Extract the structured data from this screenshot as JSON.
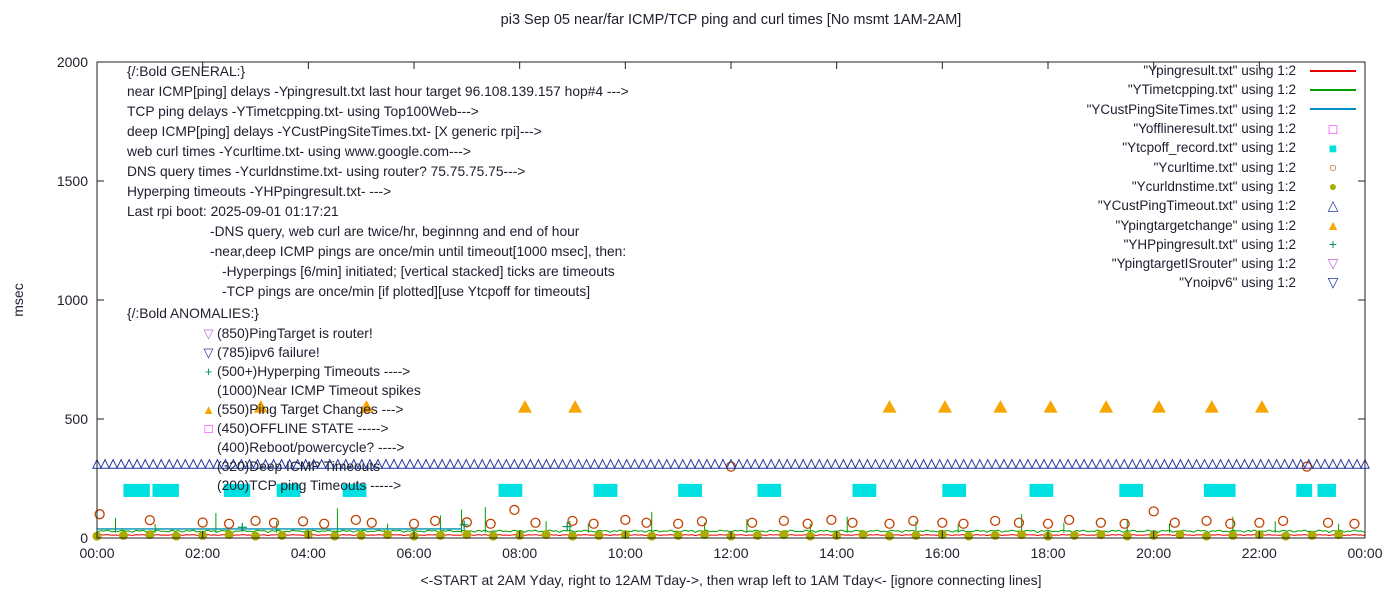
{
  "title": "pi3 Sep 05  near/far ICMP/TCP ping and curl times [No msmt 1AM-2AM]",
  "axes": {
    "ylabel": "msec",
    "xlabel": "<-START at 2AM Yday, right to 12AM Tday->, then wrap left to 1AM Tday<- [ignore connecting lines]",
    "yticks": [
      0,
      500,
      1000,
      1500,
      2000
    ],
    "xticks": [
      "00:00",
      "02:00",
      "04:00",
      "06:00",
      "08:00",
      "10:00",
      "12:00",
      "14:00",
      "16:00",
      "18:00",
      "20:00",
      "22:00",
      "00:00"
    ]
  },
  "legend": [
    {
      "label": "\"Ypingresult.txt\" using 1:2",
      "marker": "line",
      "color": "#e60000"
    },
    {
      "label": "\"YTimetcpping.txt\" using 1:2",
      "marker": "line",
      "color": "#00a000"
    },
    {
      "label": "\"YCustPingSiteTimes.txt\" using 1:2",
      "marker": "line",
      "color": "#0090c0"
    },
    {
      "label": "\"Yofflineresult.txt\" using 1:2",
      "marker": "square-open",
      "color": "#ff00ff"
    },
    {
      "label": "\"Ytcpoff_record.txt\" using 1:2",
      "marker": "square-filled",
      "color": "#00e0e0"
    },
    {
      "label": "\"Ycurltime.txt\" using 1:2",
      "marker": "circle-open",
      "color": "#c04000"
    },
    {
      "label": "\"Ycurldnstime.txt\" using 1:2",
      "marker": "circle-filled",
      "color": "#abab00"
    },
    {
      "label": "\"YCustPingTimeout.txt\" using 1:2",
      "marker": "triangle-up-open",
      "color": "#2438a0"
    },
    {
      "label": "\"Ypingtargetchange\" using 1:2",
      "marker": "triangle-up-filled",
      "color": "#f7a500"
    },
    {
      "label": "\"YHPpingresult.txt\" using 1:2",
      "marker": "plus",
      "color": "#009060"
    },
    {
      "label": "\"YpingtargetISrouter\" using 1:2",
      "marker": "triangle-down-open",
      "color": "#c06ce0"
    },
    {
      "label": "\"Ynoipv6\" using 1:2",
      "marker": "triangle-down-open",
      "color": "#2438a0"
    }
  ],
  "general": {
    "indents": [
      0,
      83,
      95
    ],
    "lines": [
      {
        "indent": 0,
        "text": "{/:Bold GENERAL:}"
      },
      {
        "indent": 0,
        "text": "near ICMP[ping] delays -Ypingresult.txt last hour target 96.108.139.157 hop#4 --->"
      },
      {
        "indent": 0,
        "text": "TCP ping delays -YTimetcpping.txt- using Top100Web--->"
      },
      {
        "indent": 0,
        "text": "deep ICMP[ping] delays -YCustPingSiteTimes.txt- [X generic rpi]--->"
      },
      {
        "indent": 0,
        "text": "web curl times -Ycurltime.txt- using www.google.com--->"
      },
      {
        "indent": 0,
        "text": "DNS query times -Ycurldnstime.txt- using router? 75.75.75.75--->"
      },
      {
        "indent": 0,
        "text": "Hyperping timeouts -YHPpingresult.txt- --->"
      },
      {
        "indent": 0,
        "text": "Last rpi boot: 2025-09-01 01:17:21"
      },
      {
        "indent": 1,
        "text": "-DNS query, web curl are twice/hr, beginnng and end of hour"
      },
      {
        "indent": 1,
        "text": "-near,deep ICMP pings are once/min until timeout[1000 msec], then:"
      },
      {
        "indent": 2,
        "text": "-Hyperpings [6/min] initiated; [vertical stacked] ticks are timeouts"
      },
      {
        "indent": 2,
        "text": "-TCP pings are once/min [if plotted][use Ytcpoff for timeouts]"
      }
    ]
  },
  "anomalies": {
    "header": "{/:Bold ANOMALIES:}",
    "items": [
      {
        "icon": "triangle-down-open",
        "color": "#c06ce0",
        "text": "(850)PingTarget is router!"
      },
      {
        "icon": "triangle-down-open",
        "color": "#2438a0",
        "text": "(785)ipv6 failure!"
      },
      {
        "icon": "plus",
        "color": "#009060",
        "text": "(500+)Hyperping Timeouts ---->"
      },
      {
        "icon": null,
        "color": null,
        "text": "(1000)Near ICMP Timeout spikes"
      },
      {
        "icon": "triangle-up-filled",
        "color": "#f7a500",
        "text": "(550)Ping Target Changes --->"
      },
      {
        "icon": "square-open",
        "color": "#ff00ff",
        "text": "(450)OFFLINE STATE ----->"
      },
      {
        "icon": null,
        "color": null,
        "text": "(400)Reboot/powercycle? ---->"
      },
      {
        "icon": null,
        "color": null,
        "text": "(320)Deep ICMP Timeouts"
      },
      {
        "icon": null,
        "color": null,
        "text": "(200)TCP ping Timeouts ----->"
      }
    ]
  },
  "chart_data": {
    "type": "scatter",
    "title": "pi3 Sep 05  near/far ICMP/TCP ping and curl times [No msmt 1AM-2AM]",
    "xlabel": "<-START at 2AM Yday, right to 12AM Tday->, then wrap left to 1AM Tday<- [ignore connecting lines]",
    "ylabel": "msec",
    "xlim_hours": [
      0,
      24
    ],
    "ylim": [
      0,
      2000
    ],
    "grid": false,
    "legend_position": "top-right",
    "series": [
      {
        "name": "Ypingresult",
        "style": "line",
        "color": "#e60000",
        "baseline": 10,
        "noise_amp": 6,
        "spikes": []
      },
      {
        "name": "YTimetcpping",
        "style": "line",
        "color": "#00a000",
        "baseline": 22,
        "noise_amp": 16,
        "spikes": [
          [
            0.35,
            85
          ],
          [
            1.1,
            60
          ],
          [
            2.25,
            105
          ],
          [
            3.4,
            70
          ],
          [
            4.55,
            125
          ],
          [
            5.5,
            60
          ],
          [
            6.5,
            95
          ],
          [
            6.9,
            120
          ],
          [
            7.35,
            130
          ],
          [
            8.5,
            70
          ],
          [
            8.95,
            72
          ],
          [
            9.3,
            60
          ],
          [
            10.5,
            110
          ],
          [
            11.5,
            65
          ],
          [
            12.3,
            80
          ],
          [
            13.5,
            60
          ],
          [
            14.2,
            90
          ],
          [
            15.5,
            70
          ],
          [
            16.3,
            60
          ],
          [
            17.5,
            100
          ],
          [
            18.3,
            65
          ],
          [
            19.5,
            80
          ],
          [
            20.3,
            60
          ],
          [
            21.5,
            90
          ],
          [
            22.3,
            70
          ],
          [
            23.5,
            60
          ]
        ]
      },
      {
        "name": "YCustPingSiteTimes",
        "style": "line",
        "color": "#0090b0",
        "segments": [
          [
            0,
            6.9,
            38
          ]
        ]
      },
      {
        "name": "Ytcpoff_record",
        "style": "block",
        "color": "#00e0e0",
        "value": 200,
        "block_height_msec": 55,
        "blocks": [
          [
            0.5,
            1.0
          ],
          [
            1.05,
            1.55
          ],
          [
            2.4,
            2.9
          ],
          [
            3.4,
            3.85
          ],
          [
            4.65,
            5.1
          ],
          [
            7.6,
            8.05
          ],
          [
            9.4,
            9.85
          ],
          [
            11.0,
            11.45
          ],
          [
            12.5,
            12.95
          ],
          [
            14.3,
            14.75
          ],
          [
            16.0,
            16.45
          ],
          [
            17.65,
            18.1
          ],
          [
            19.35,
            19.8
          ],
          [
            20.95,
            21.55
          ],
          [
            22.7,
            23.0
          ],
          [
            23.1,
            23.45
          ]
        ]
      },
      {
        "name": "Ycurltime",
        "style": "circle-open",
        "color": "#c04000",
        "points": [
          [
            0.05,
            100
          ],
          [
            1.0,
            75
          ],
          [
            2.0,
            65
          ],
          [
            2.5,
            60
          ],
          [
            3.0,
            72
          ],
          [
            3.35,
            64
          ],
          [
            3.9,
            70
          ],
          [
            4.3,
            60
          ],
          [
            4.9,
            76
          ],
          [
            5.2,
            64
          ],
          [
            6.0,
            60
          ],
          [
            6.4,
            72
          ],
          [
            7.0,
            66
          ],
          [
            7.45,
            60
          ],
          [
            7.9,
            118
          ],
          [
            8.3,
            64
          ],
          [
            9.0,
            72
          ],
          [
            9.4,
            60
          ],
          [
            10.0,
            76
          ],
          [
            10.4,
            64
          ],
          [
            11.0,
            60
          ],
          [
            11.45,
            70
          ],
          [
            12.0,
            300
          ],
          [
            12.4,
            64
          ],
          [
            13.0,
            72
          ],
          [
            13.45,
            60
          ],
          [
            13.9,
            76
          ],
          [
            14.3,
            64
          ],
          [
            15.0,
            60
          ],
          [
            15.45,
            72
          ],
          [
            16.0,
            64
          ],
          [
            16.4,
            60
          ],
          [
            17.0,
            72
          ],
          [
            17.45,
            64
          ],
          [
            18.0,
            60
          ],
          [
            18.4,
            76
          ],
          [
            19.0,
            64
          ],
          [
            19.45,
            60
          ],
          [
            20.0,
            112
          ],
          [
            20.4,
            64
          ],
          [
            21.0,
            72
          ],
          [
            21.45,
            60
          ],
          [
            22.0,
            64
          ],
          [
            22.45,
            72
          ],
          [
            22.9,
            300
          ],
          [
            23.3,
            64
          ],
          [
            23.8,
            60
          ]
        ]
      },
      {
        "name": "Ycurldnstime",
        "style": "circle-filled",
        "color": "#abab00",
        "value": 8,
        "from": 0,
        "to": 23.5,
        "every_hours": 0.5
      },
      {
        "name": "YCustPingTimeout",
        "style": "triangle-row",
        "color": "#2438a0",
        "value": 310,
        "from": 0,
        "to": 24
      },
      {
        "name": "Ypingtargetchange",
        "style": "triangle-up-filled",
        "color": "#f7a500",
        "points": [
          [
            3.1,
            550
          ],
          [
            5.1,
            550
          ],
          [
            8.1,
            550
          ],
          [
            9.05,
            550
          ],
          [
            15.0,
            550
          ],
          [
            16.05,
            550
          ],
          [
            17.1,
            550
          ],
          [
            18.05,
            550
          ],
          [
            19.1,
            550
          ],
          [
            20.1,
            550
          ],
          [
            21.1,
            550
          ],
          [
            22.05,
            550
          ]
        ]
      },
      {
        "name": "YHPpingresult",
        "style": "plus",
        "color": "#009060",
        "points": [
          [
            2.75,
            45
          ],
          [
            6.95,
            55
          ],
          [
            8.9,
            48
          ]
        ]
      }
    ]
  }
}
